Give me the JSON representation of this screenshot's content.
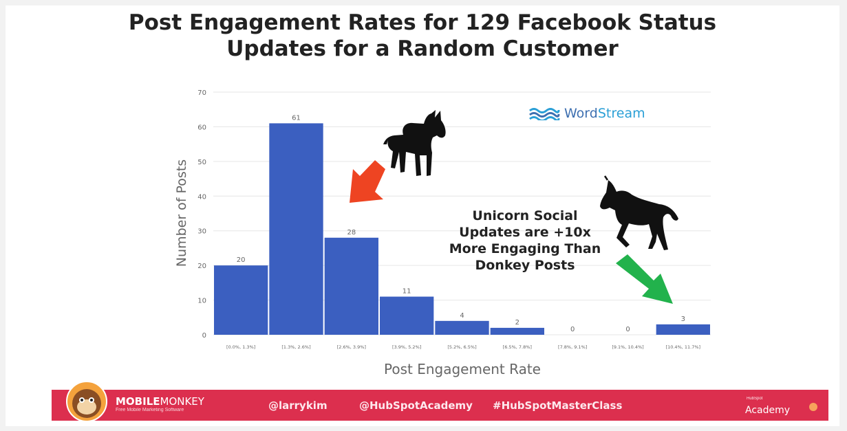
{
  "chart_data": {
    "type": "bar",
    "title": [
      "Post Engagement Rates for 129 Facebook Status",
      "Updates for a Random Customer"
    ],
    "xlabel": "Post Engagement Rate",
    "ylabel": "Number of Posts",
    "ylim": [
      0,
      70
    ],
    "yticks": [
      0,
      10,
      20,
      30,
      40,
      50,
      60,
      70
    ],
    "grid": true,
    "categories": [
      "[0.0%, 1.3%]",
      "[1.3%, 2.6%]",
      "[2.6%, 3.9%]",
      "[3.9%, 5.2%]",
      "[5.2%, 6.5%]",
      "[6.5%, 7.8%]",
      "[7.8%, 9.1%]",
      "[9.1%, 10.4%]",
      "[10.4%, 11.7%]"
    ],
    "values": [
      20,
      61,
      28,
      11,
      4,
      2,
      0,
      0,
      3
    ],
    "bar_color": "#3b5fc0",
    "annotation": [
      "Unicorn Social",
      "Updates are +10x",
      "More Engaging Than",
      "Donkey Posts"
    ]
  },
  "branding": {
    "wordstream": {
      "part1": "Word",
      "part2": "Stream"
    },
    "mobilemonkey": {
      "bold": "MOBILE",
      "light": "MONKEY",
      "tagline": "Free Mobile Marketing Software"
    },
    "footer_items": [
      "@larrykim",
      "@HubSpotAcademy",
      "#HubSpotMasterClass"
    ],
    "hubspot": {
      "small": "HubSpot",
      "academy": "Academy"
    }
  },
  "colors": {
    "footer": "#dc2f4e",
    "red_arrow": "#ee4422",
    "green_arrow": "#22b24c"
  },
  "icons": [
    "donkey-icon",
    "unicorn-icon",
    "red-arrow-icon",
    "green-arrow-icon",
    "wordstream-waves-icon",
    "monkey-avatar-icon"
  ]
}
